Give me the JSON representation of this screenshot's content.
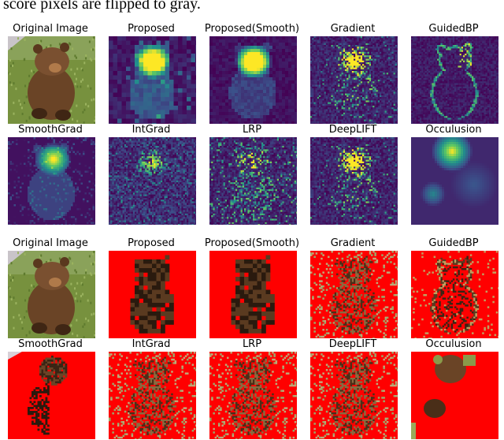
{
  "caption": "score pixels are flipped to gray.",
  "grid_top": {
    "rows": [
      {
        "cells": [
          {
            "title": "Original Image",
            "kind": "photo"
          },
          {
            "title": "Proposed",
            "kind": "heat-blocky"
          },
          {
            "title": "Proposed(Smooth)",
            "kind": "heat-blocky-smooth"
          },
          {
            "title": "Gradient",
            "kind": "heat-noise"
          },
          {
            "title": "GuidedBP",
            "kind": "heat-outline"
          }
        ]
      },
      {
        "cells": [
          {
            "title": "SmoothGrad",
            "kind": "heat-smoothgrad"
          },
          {
            "title": "IntGrad",
            "kind": "heat-noise-dense"
          },
          {
            "title": "LRP",
            "kind": "heat-lrp"
          },
          {
            "title": "DeepLIFT",
            "kind": "heat-noise"
          },
          {
            "title": "Occulusion",
            "kind": "heat-occlusion"
          }
        ]
      }
    ]
  },
  "grid_bottom": {
    "rows": [
      {
        "cells": [
          {
            "title": "Original Image",
            "kind": "photo"
          },
          {
            "title": "Proposed",
            "kind": "mask-blocky"
          },
          {
            "title": "Proposed(Smooth)",
            "kind": "mask-blocky"
          },
          {
            "title": "Gradient",
            "kind": "mask-noisy"
          },
          {
            "title": "GuidedBP",
            "kind": "mask-outline"
          }
        ]
      },
      {
        "cells": [
          {
            "title": "SmoothGrad",
            "kind": "mask-smoothgrad"
          },
          {
            "title": "IntGrad",
            "kind": "mask-noisy"
          },
          {
            "title": "LRP",
            "kind": "mask-noisy"
          },
          {
            "title": "DeepLIFT",
            "kind": "mask-noisy"
          },
          {
            "title": "Occulusion",
            "kind": "mask-occlusion"
          }
        ]
      }
    ]
  },
  "colors": {
    "viridis_dark": "#440154",
    "viridis_mid": "#21918c",
    "viridis_bright": "#fde725",
    "mask_red": "#ff0000",
    "photo_grass": "#6f8a3a"
  }
}
